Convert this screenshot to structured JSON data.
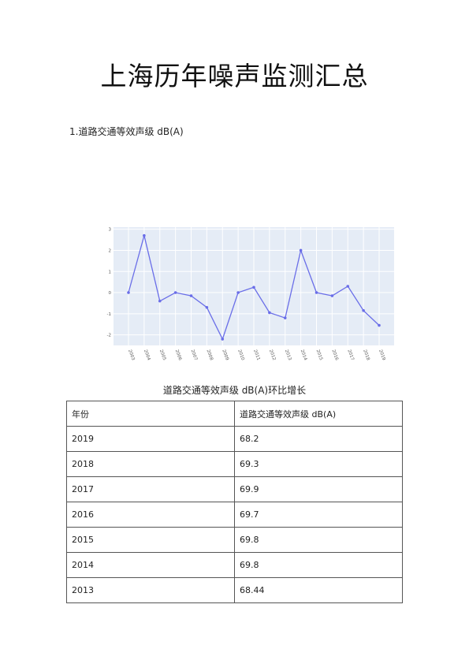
{
  "page": {
    "title": "上海历年噪声监测汇总",
    "section_heading": "1.道路交通等效声级 dB(A)",
    "chart_caption": "道路交通等效声级 dB(A)环比增长"
  },
  "chart_data": {
    "type": "line",
    "x": [
      "2003",
      "2004",
      "2005",
      "2006",
      "2007",
      "2008",
      "2009",
      "2010",
      "2011",
      "2012",
      "2013",
      "2014",
      "2015",
      "2016",
      "2017",
      "2018",
      "2019"
    ],
    "tick_labels": [
      "2003",
      "2004",
      "2005",
      "2006",
      "2007",
      "2008",
      "2009",
      "2010",
      "2011",
      "2012",
      "2013",
      "2014",
      "2015",
      "2016",
      "2017",
      "2018",
      "2019"
    ],
    "values": [
      0,
      2.7,
      -0.4,
      0,
      -0.15,
      -0.7,
      -2.2,
      0,
      0.25,
      -0.95,
      -1.2,
      2.0,
      0,
      -0.15,
      0.3,
      -0.85,
      -1.55
    ],
    "yticks": [
      "3",
      "2",
      "1",
      "0",
      "-1",
      "-2"
    ],
    "yticks_values": [
      3,
      2,
      1,
      0,
      -1,
      -2
    ],
    "ylim": [
      -2.5,
      3.1
    ],
    "grid": true,
    "line_color": "#6a6ee8",
    "plot_bg": "#e5ecf6"
  },
  "table": {
    "headers": [
      "年份",
      "道路交通等效声级 dB(A)"
    ],
    "rows": [
      [
        "2019",
        "68.2"
      ],
      [
        "2018",
        "69.3"
      ],
      [
        "2017",
        "69.9"
      ],
      [
        "2016",
        "69.7"
      ],
      [
        "2015",
        "69.8"
      ],
      [
        "2014",
        "69.8"
      ],
      [
        "2013",
        "68.44"
      ]
    ]
  }
}
